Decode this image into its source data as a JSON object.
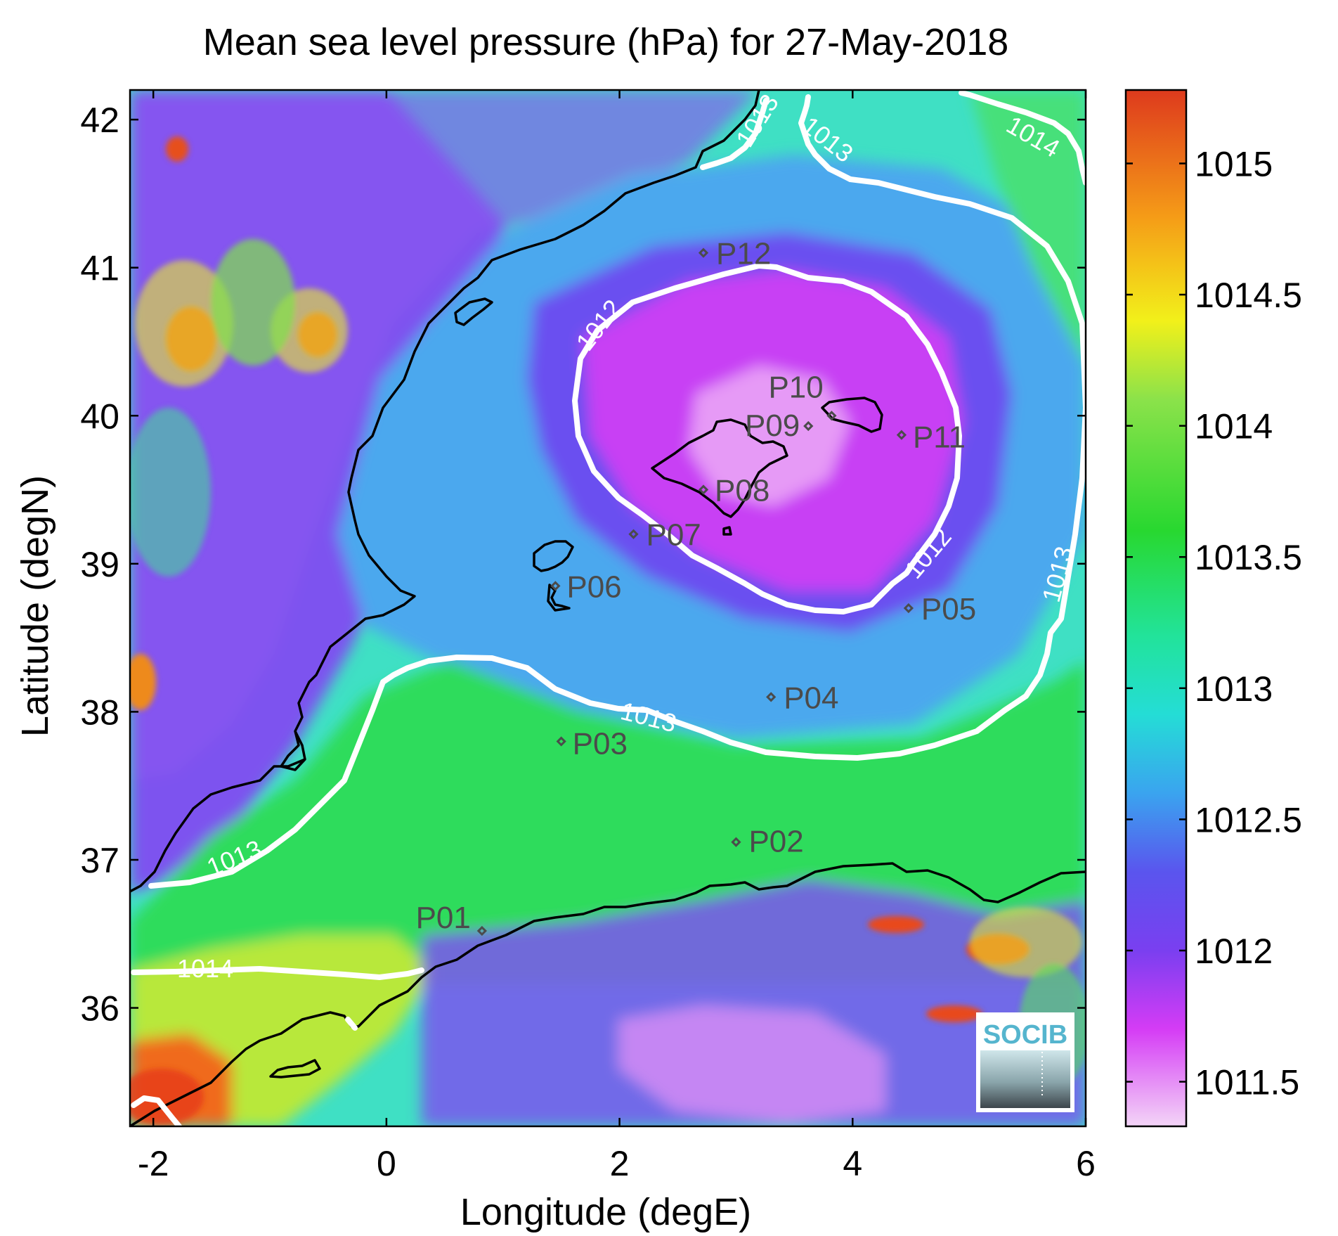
{
  "title": "Mean sea level pressure (hPa) for 27-May-2018",
  "x_axis": {
    "label": "Longitude (degE)",
    "min": -2.2,
    "max": 6.0,
    "ticks": [
      {
        "value": -2,
        "label": "-2"
      },
      {
        "value": 0,
        "label": "0"
      },
      {
        "value": 2,
        "label": "2"
      },
      {
        "value": 4,
        "label": "4"
      },
      {
        "value": 6,
        "label": "6"
      }
    ]
  },
  "y_axis": {
    "label": "Latitude (degN)",
    "min": 35.2,
    "max": 42.2,
    "ticks": [
      {
        "value": 36,
        "label": "36"
      },
      {
        "value": 37,
        "label": "37"
      },
      {
        "value": 38,
        "label": "38"
      },
      {
        "value": 39,
        "label": "39"
      },
      {
        "value": 40,
        "label": "40"
      },
      {
        "value": 41,
        "label": "41"
      },
      {
        "value": 42,
        "label": "42"
      }
    ]
  },
  "colorbar": {
    "min": 1011.33,
    "max": 1015.28,
    "ticks": [
      {
        "value": 1011.5,
        "label": "1011.5"
      },
      {
        "value": 1012,
        "label": "1012"
      },
      {
        "value": 1012.5,
        "label": "1012.5"
      },
      {
        "value": 1013,
        "label": "1013"
      },
      {
        "value": 1013.5,
        "label": "1013.5"
      },
      {
        "value": 1014,
        "label": "1014"
      },
      {
        "value": 1014.5,
        "label": "1014.5"
      },
      {
        "value": 1015,
        "label": "1015"
      }
    ],
    "stops": [
      {
        "value": 1011.33,
        "color": "#f3d5f7"
      },
      {
        "value": 1011.7,
        "color": "#d53cf5"
      },
      {
        "value": 1012.0,
        "color": "#7a3ff0"
      },
      {
        "value": 1012.3,
        "color": "#5a55ee"
      },
      {
        "value": 1012.6,
        "color": "#3aa4ef"
      },
      {
        "value": 1012.9,
        "color": "#24ddd6"
      },
      {
        "value": 1013.2,
        "color": "#22e39a"
      },
      {
        "value": 1013.6,
        "color": "#28d830"
      },
      {
        "value": 1014.1,
        "color": "#8be24a"
      },
      {
        "value": 1014.4,
        "color": "#f2f01a"
      },
      {
        "value": 1014.8,
        "color": "#f59b17"
      },
      {
        "value": 1015.28,
        "color": "#de3a1d"
      }
    ]
  },
  "stations": [
    {
      "id": "P01",
      "lon": 0.82,
      "lat": 36.52
    },
    {
      "id": "P02",
      "lon": 3.0,
      "lat": 37.12
    },
    {
      "id": "P03",
      "lon": 1.5,
      "lat": 37.8
    },
    {
      "id": "P04",
      "lon": 3.3,
      "lat": 38.1
    },
    {
      "id": "P05",
      "lon": 4.48,
      "lat": 38.7
    },
    {
      "id": "P06",
      "lon": 1.45,
      "lat": 38.85
    },
    {
      "id": "P07",
      "lon": 2.12,
      "lat": 39.2
    },
    {
      "id": "P08",
      "lon": 2.72,
      "lat": 39.5
    },
    {
      "id": "P09",
      "lon": 3.62,
      "lat": 39.93
    },
    {
      "id": "P10",
      "lon": 3.82,
      "lat": 40.0
    },
    {
      "id": "P11",
      "lon": 4.42,
      "lat": 39.87
    },
    {
      "id": "P12",
      "lon": 2.72,
      "lat": 41.1
    }
  ],
  "contours": [
    {
      "level": 1012,
      "labels": [
        "1012",
        "1012"
      ]
    },
    {
      "level": 1013,
      "labels": [
        "1013",
        "1013",
        "1013",
        "1013",
        "1013"
      ]
    },
    {
      "level": 1014,
      "labels": [
        "1014",
        "1014"
      ]
    }
  ],
  "logo": {
    "text": "SOCIB"
  },
  "colors": {
    "coastline": "#000000",
    "contour": "#ffffff",
    "station_marker": "#4b4b4b",
    "logo_text": "#55b5ce"
  }
}
